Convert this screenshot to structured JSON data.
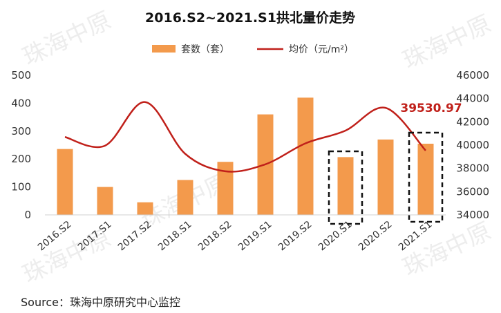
{
  "chart_data": {
    "type": "bar",
    "title": "2016.S2~2021.S1拱北量价走势",
    "categories": [
      "2016.S2",
      "2017.S1",
      "2017.S2",
      "2018.S1",
      "2018.S2",
      "2019.S1",
      "2019.S2",
      "2020.S1",
      "2020.S2",
      "2021.S1"
    ],
    "series": [
      {
        "name": "套数（套）",
        "type": "bar",
        "axis": "left",
        "color": "#F39A4C",
        "values": [
          236,
          100,
          45,
          125,
          190,
          360,
          420,
          207,
          270,
          255
        ]
      },
      {
        "name": "均价（元/m²）",
        "type": "line",
        "axis": "right",
        "color": "#C0201A",
        "values": [
          40700,
          39950,
          43700,
          39250,
          37750,
          38350,
          40150,
          41250,
          43200,
          39530.97
        ]
      }
    ],
    "left_axis": {
      "min": 0,
      "max": 500,
      "ticks": [
        0,
        100,
        200,
        300,
        400,
        500
      ]
    },
    "right_axis": {
      "min": 34000,
      "max": 46000,
      "ticks": [
        34000,
        36000,
        38000,
        40000,
        42000,
        44000,
        46000
      ]
    },
    "annotation": {
      "text": "39530.97",
      "color": "#C0201A"
    },
    "highlighted_categories": [
      "2020.S1",
      "2021.S1"
    ],
    "grid": false,
    "legend_position": "top"
  },
  "source_text": "Source：珠海中原研究中心监控",
  "watermark_text": "珠海中原"
}
